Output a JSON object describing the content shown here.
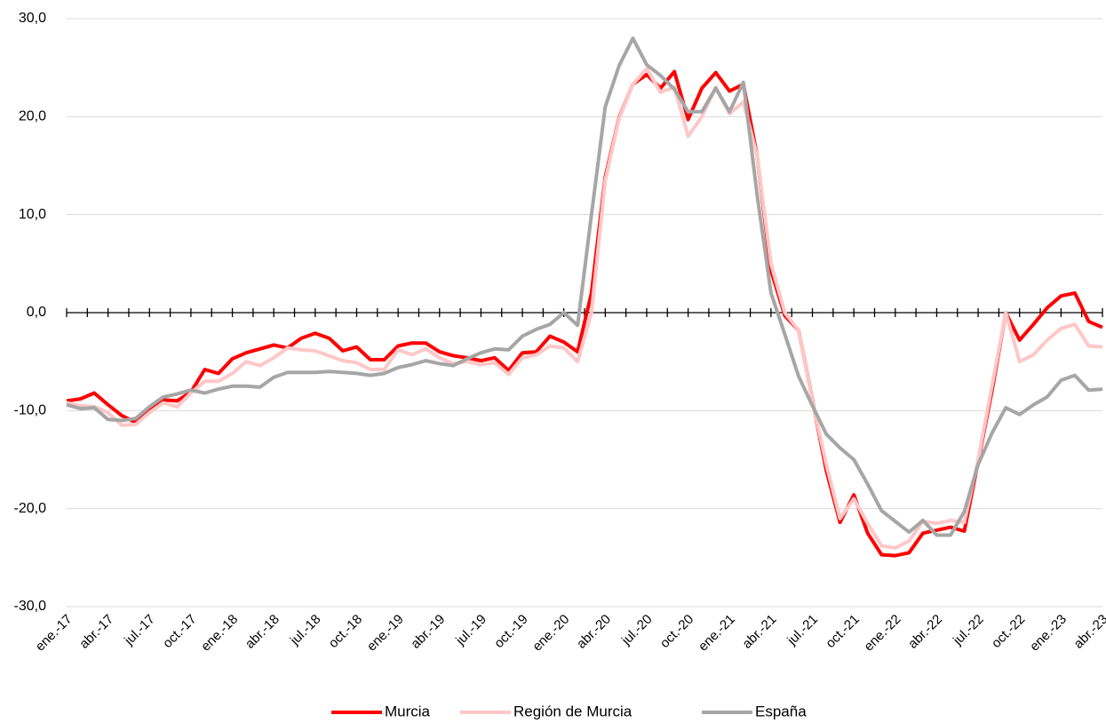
{
  "chart_data": {
    "type": "line",
    "categories": [
      "ene.-17",
      null,
      null,
      "abr.-17",
      null,
      null,
      "jul.-17",
      null,
      null,
      "oct.-17",
      null,
      null,
      "ene.-18",
      null,
      null,
      "abr.-18",
      null,
      null,
      "jul.-18",
      null,
      null,
      "oct.-18",
      null,
      null,
      "ene.-19",
      null,
      null,
      "abr.-19",
      null,
      null,
      "jul.-19",
      null,
      null,
      "oct.-19",
      null,
      null,
      "ene.-20",
      null,
      null,
      "abr.-20",
      null,
      null,
      "jul.-20",
      null,
      null,
      "oct.-20",
      null,
      null,
      "ene.-21",
      null,
      null,
      "abr.-21",
      null,
      null,
      "jul.-21",
      null,
      null,
      "oct.-21",
      null,
      null,
      "ene.-22",
      null,
      null,
      "abr.-22",
      null,
      null,
      "jul.-22",
      null,
      null,
      "oct.-22",
      null,
      null,
      "ene.-23",
      null,
      null,
      "abr.-23"
    ],
    "series": [
      {
        "name": "Murcia",
        "color": "#ff0000",
        "values": [
          -9.0,
          -8.8,
          -8.2,
          -9.4,
          -10.5,
          -11.2,
          -9.9,
          -8.9,
          -9.0,
          -8.1,
          -5.8,
          -6.2,
          -4.7,
          -4.1,
          -3.7,
          -3.3,
          -3.6,
          -2.6,
          -2.1,
          -2.6,
          -3.9,
          -3.5,
          -4.8,
          -4.8,
          -3.4,
          -3.1,
          -3.1,
          -4.0,
          -4.4,
          -4.6,
          -4.9,
          -4.6,
          -5.9,
          -4.1,
          -4.0,
          -2.4,
          -3.0,
          -4.0,
          2.0,
          13.8,
          19.9,
          23.3,
          24.3,
          22.9,
          24.6,
          19.7,
          22.9,
          24.5,
          22.6,
          23.3,
          16.0,
          4.3,
          -0.3,
          -1.8,
          -8.9,
          -16.1,
          -21.4,
          -18.6,
          -22.5,
          -24.7,
          -24.8,
          -24.5,
          -22.5,
          -22.2,
          -21.9,
          -22.3,
          -15.2,
          -8.0,
          0.0,
          -2.8,
          -1.2,
          0.5,
          1.7,
          2.0,
          -0.9,
          -1.5
        ]
      },
      {
        "name": "Región de Murcia",
        "color": "#ffc7c7",
        "values": [
          -9.2,
          -9.5,
          -9.6,
          -10.2,
          -11.5,
          -11.4,
          -10.2,
          -9.2,
          -9.6,
          -8.2,
          -7.0,
          -7.0,
          -6.2,
          -5.0,
          -5.4,
          -4.6,
          -3.6,
          -3.8,
          -3.9,
          -4.4,
          -4.9,
          -5.1,
          -5.8,
          -5.8,
          -3.8,
          -4.3,
          -3.7,
          -4.6,
          -5.2,
          -5.0,
          -5.3,
          -5.1,
          -6.3,
          -4.6,
          -4.3,
          -3.4,
          -3.6,
          -5.0,
          0.0,
          13.5,
          19.8,
          23.3,
          24.9,
          22.5,
          23.0,
          18.0,
          20.0,
          23.0,
          20.3,
          21.5,
          16.0,
          5.0,
          0.0,
          -1.8,
          -9.0,
          -15.5,
          -21.0,
          -19.0,
          -21.5,
          -23.8,
          -24.0,
          -23.3,
          -21.3,
          -21.5,
          -21.2,
          -21.4,
          -15.0,
          -7.5,
          0.0,
          -5.0,
          -4.3,
          -2.8,
          -1.6,
          -1.2,
          -3.4,
          -3.5
        ]
      },
      {
        "name": "España",
        "color": "#a6a6a6",
        "values": [
          -9.4,
          -9.8,
          -9.7,
          -10.9,
          -11.0,
          -10.8,
          -9.6,
          -8.6,
          -8.3,
          -7.9,
          -8.2,
          -7.8,
          -7.5,
          -7.5,
          -7.6,
          -6.6,
          -6.1,
          -6.1,
          -6.1,
          -6.0,
          -6.1,
          -6.2,
          -6.4,
          -6.2,
          -5.6,
          -5.3,
          -4.9,
          -5.2,
          -5.4,
          -4.7,
          -4.1,
          -3.7,
          -3.8,
          -2.4,
          -1.7,
          -1.2,
          0.0,
          -1.3,
          10.0,
          21.0,
          25.2,
          28.0,
          25.3,
          24.2,
          22.8,
          20.5,
          20.5,
          22.9,
          20.5,
          23.5,
          12.0,
          2.0,
          -2.2,
          -6.5,
          -9.5,
          -12.4,
          -13.8,
          -15.0,
          -17.5,
          -20.2,
          -21.3,
          -22.4,
          -21.2,
          -22.7,
          -22.7,
          -20.3,
          -15.5,
          -12.3,
          -9.7,
          -10.4,
          -9.4,
          -8.6,
          -6.9,
          -6.4,
          -7.9,
          -7.8
        ]
      }
    ],
    "ylim": [
      -30,
      30
    ],
    "yticks": [
      {
        "value": -30,
        "label": "-30,0"
      },
      {
        "value": -20,
        "label": "-20,0"
      },
      {
        "value": -10,
        "label": "-10,0"
      },
      {
        "value": 0,
        "label": "0,0"
      },
      {
        "value": 10,
        "label": "10,0"
      },
      {
        "value": 20,
        "label": "20,0"
      },
      {
        "value": 30,
        "label": "30,0"
      }
    ],
    "grid": true,
    "legend": "bottom"
  }
}
